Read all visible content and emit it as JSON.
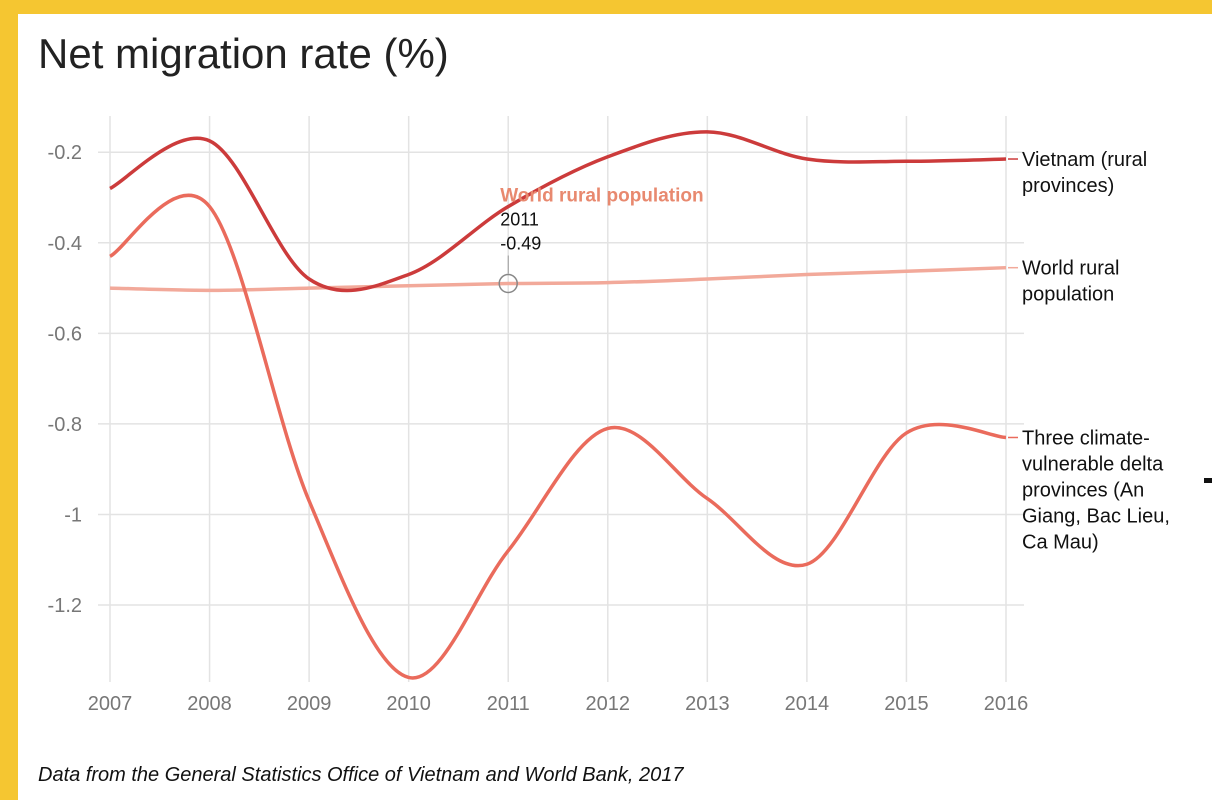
{
  "chart_data": {
    "type": "line",
    "title": "Net migration rate (%)",
    "source": "Data from the General Statistics Office of Vietnam and World Bank, 2017",
    "xlabel": "",
    "ylabel": "",
    "x": [
      2007,
      2008,
      2009,
      2010,
      2011,
      2012,
      2013,
      2014,
      2015,
      2016
    ],
    "x_tick_labels": [
      "2007",
      "2008",
      "2009",
      "2010",
      "2011",
      "2012",
      "2013",
      "2014",
      "2015",
      "2016"
    ],
    "y_ticks": [
      -0.2,
      -0.4,
      -0.6,
      -0.8,
      -1.0,
      -1.2
    ],
    "y_tick_labels": [
      "-0.2",
      "-0.4",
      "-0.6",
      "-0.8",
      "-1",
      "-1.2"
    ],
    "ylim": [
      -1.37,
      -0.12
    ],
    "grid": true,
    "series": [
      {
        "name_lines": [
          "Vietnam (rural",
          "provinces)"
        ],
        "color": "#cc3b3b",
        "values": [
          -0.28,
          -0.175,
          -0.48,
          -0.47,
          -0.32,
          -0.21,
          -0.155,
          -0.215,
          -0.22,
          -0.215
        ]
      },
      {
        "name_lines": [
          "World rural",
          "population"
        ],
        "color": "#f2a99a",
        "values": [
          -0.5,
          -0.505,
          -0.5,
          -0.495,
          -0.49,
          -0.488,
          -0.48,
          -0.47,
          -0.463,
          -0.455
        ]
      },
      {
        "name_lines": [
          "Three climate-",
          "vulnerable delta",
          "provinces (An",
          "Giang, Bac Lieu,",
          "Ca Mau)"
        ],
        "color": "#ea6b5c",
        "values": [
          -0.43,
          -0.32,
          -0.97,
          -1.36,
          -1.08,
          -0.81,
          -0.965,
          -1.11,
          -0.82,
          -0.83
        ]
      }
    ],
    "tooltip": {
      "series": "World rural population",
      "year": "2011",
      "value": "-0.49",
      "x": 2011,
      "y": -0.49,
      "color": "#e8896f"
    }
  }
}
